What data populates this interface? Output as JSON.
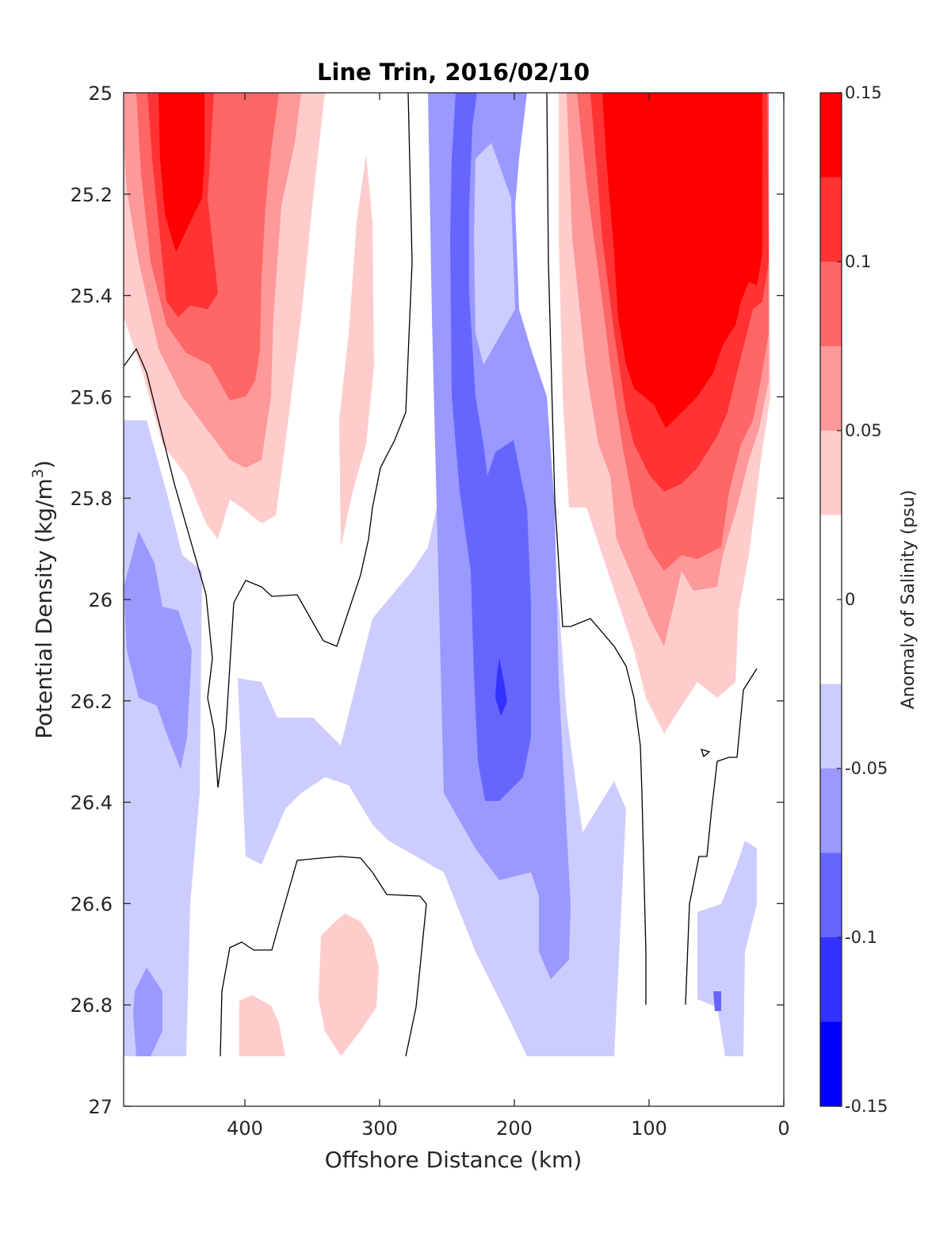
{
  "chart_data": {
    "type": "heatmap",
    "subtype": "filled-contour",
    "title": "Line Trin, 2016/02/10",
    "xlabel": "Offshore Distance (km)",
    "ylabel": "Potential Density (kg/m3)",
    "ylabel_parts": {
      "main": "Potential Density (kg/m",
      "superscript": "3",
      "close": ")"
    },
    "xlim": [
      490,
      0
    ],
    "x_reversed": true,
    "ylim": [
      25,
      27
    ],
    "y_reversed": true,
    "xticks": [
      400,
      300,
      200,
      100,
      0
    ],
    "xtick_labels": [
      "400",
      "300",
      "200",
      "100",
      "0"
    ],
    "yticks": [
      25,
      25.2,
      25.4,
      25.6,
      25.8,
      26,
      26.2,
      26.4,
      26.6,
      26.8,
      27
    ],
    "ytick_labels": [
      "25",
      "25.2",
      "25.4",
      "25.6",
      "25.8",
      "26",
      "26.2",
      "26.4",
      "26.6",
      "26.8",
      "27"
    ],
    "grid": false,
    "data_extent": {
      "x": [
        480,
        10
      ],
      "y": [
        25,
        26.9
      ]
    },
    "colorbar": {
      "label": "Anomaly of Salinity (psu)",
      "range": [
        -0.15,
        0.15
      ],
      "ticks": [
        0.15,
        0.1,
        0.05,
        0,
        -0.05,
        -0.1,
        -0.15
      ],
      "tick_labels": [
        "0.15",
        "0.1",
        "0.05",
        "0",
        "-0.05",
        "-0.1",
        "-0.15"
      ],
      "levels": [
        {
          "range": [
            0.125,
            0.15
          ],
          "color": "#ff0000"
        },
        {
          "range": [
            0.1,
            0.125
          ],
          "color": "#ff3333"
        },
        {
          "range": [
            0.075,
            0.1
          ],
          "color": "#ff6666"
        },
        {
          "range": [
            0.05,
            0.075
          ],
          "color": "#ff9999"
        },
        {
          "range": [
            0.025,
            0.05
          ],
          "color": "#ffcccc"
        },
        {
          "range": [
            -0.025,
            0.025
          ],
          "color": "#ffffff"
        },
        {
          "range": [
            -0.05,
            -0.025
          ],
          "color": "#ccccff"
        },
        {
          "range": [
            -0.075,
            -0.05
          ],
          "color": "#9999ff"
        },
        {
          "range": [
            -0.1,
            -0.075
          ],
          "color": "#6666ff"
        },
        {
          "range": [
            -0.125,
            -0.1
          ],
          "color": "#3333ff"
        },
        {
          "range": [
            -0.15,
            -0.125
          ],
          "color": "#0000ff"
        }
      ]
    },
    "regions": [
      {
        "name": "offshore-positive-core",
        "level": 0.125,
        "color": "#ff0000",
        "x": [
          460,
          440,
          430,
          425,
          415,
          425,
          430,
          440,
          450,
          460
        ],
        "y": [
          25.0,
          25.0,
          25.0,
          25.05,
          25.1,
          25.15,
          25.2,
          25.2,
          25.3,
          25.25
        ]
      },
      {
        "name": "nearshore-positive-core",
        "level": 0.125,
        "color": "#ff0000",
        "x": [
          138,
          15,
          18,
          22,
          30,
          45,
          60,
          80,
          95,
          110,
          118,
          130,
          135
        ],
        "y": [
          25.0,
          25.0,
          25.1,
          25.3,
          25.4,
          25.5,
          25.55,
          25.6,
          25.65,
          25.6,
          25.45,
          25.3,
          25.15
        ]
      },
      {
        "name": "deep-positive-patch",
        "level": 0.05,
        "color": "#ffcccc",
        "x": [
          340,
          320,
          310,
          305,
          315,
          330,
          340,
          345
        ],
        "y": [
          26.65,
          26.6,
          26.7,
          26.85,
          26.9,
          26.9,
          26.85,
          26.7
        ]
      },
      {
        "name": "negative-core",
        "level": -0.125,
        "color": "#3333ff",
        "x": [
          212,
          208,
          205,
          210
        ],
        "y": [
          26.1,
          26.15,
          26.2,
          26.23
        ]
      }
    ],
    "contour_lines": [
      {
        "level": 0,
        "x": [
          490,
          480,
          460,
          430,
          420,
          410,
          405,
          415,
          420,
          420
        ],
        "y": [
          25.55,
          25.5,
          25.8,
          26.0,
          26.2,
          26.37,
          26.2,
          26.0,
          25.95,
          25.95
        ]
      },
      {
        "level": 0,
        "x": [
          280,
          278,
          274,
          275,
          290
        ],
        "y": [
          25.0,
          25.3,
          25.6,
          25.65,
          25.8
        ]
      },
      {
        "level": 0,
        "x": [
          180,
          175,
          170,
          165,
          160
        ],
        "y": [
          25.0,
          25.5,
          26.05,
          26.05,
          26.1
        ]
      }
    ]
  }
}
